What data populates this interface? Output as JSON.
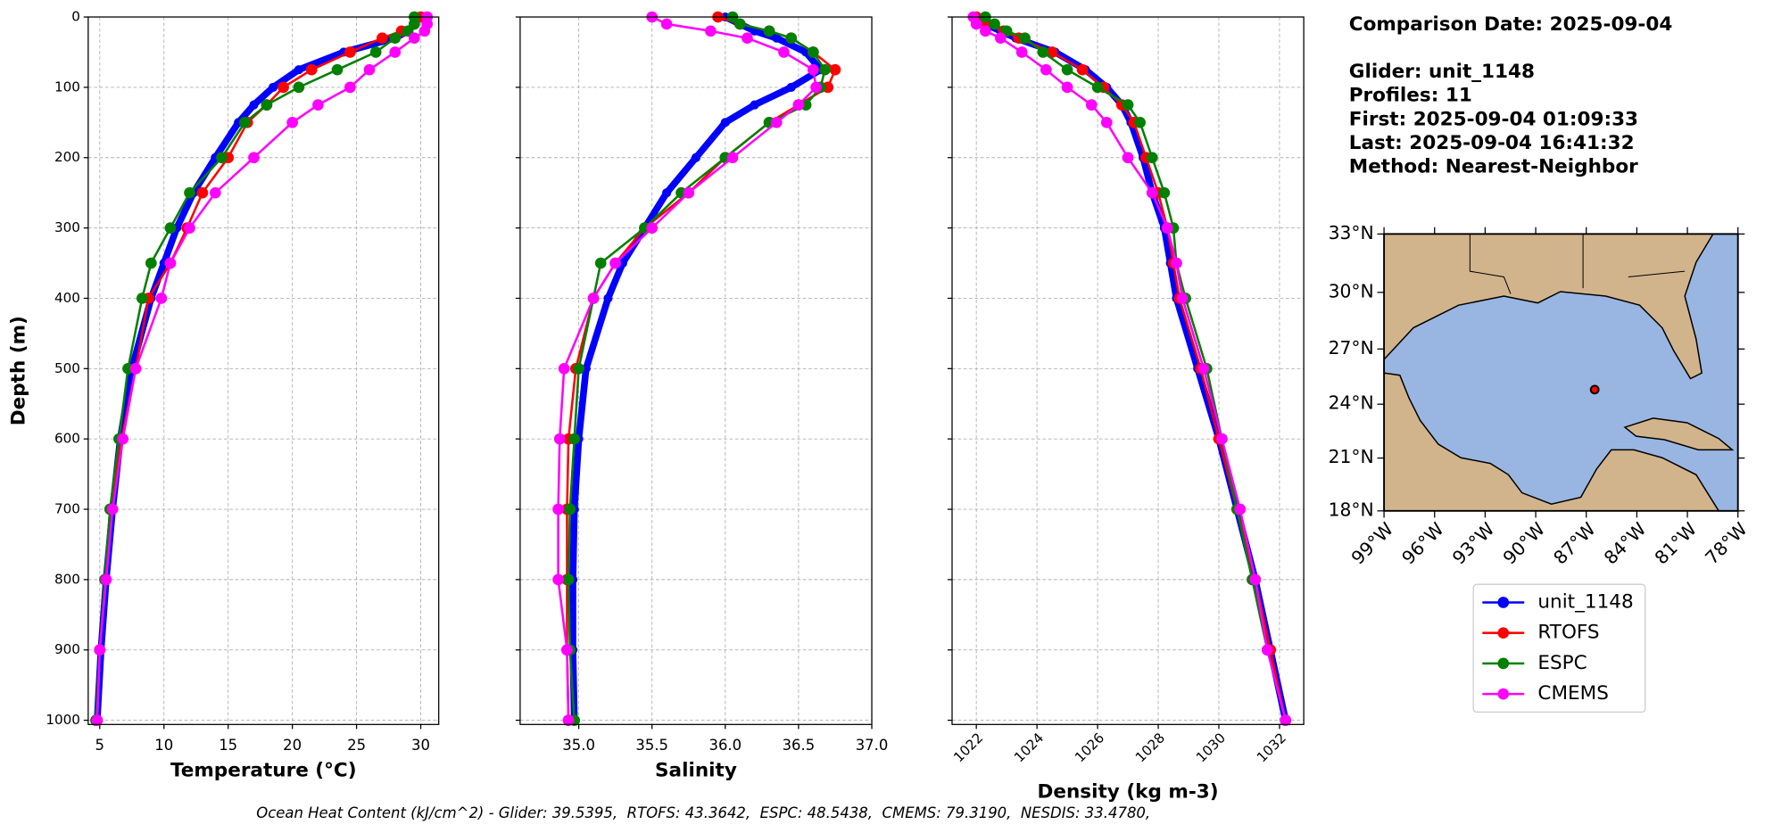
{
  "chart_data": [
    {
      "type": "line",
      "xlabel": "Temperature (°C)",
      "ylabel": "Depth (m)",
      "y": [
        0,
        10,
        20,
        30,
        50,
        75,
        100,
        125,
        150,
        200,
        250,
        300,
        350,
        400,
        500,
        600,
        700,
        800,
        900,
        1000
      ],
      "xlim": [
        4.1,
        31.4
      ],
      "xticks": [
        5,
        10,
        15,
        20,
        25,
        30
      ],
      "ylim": [
        1006,
        0
      ],
      "yticks": [
        0,
        100,
        200,
        300,
        400,
        500,
        600,
        700,
        800,
        900,
        1000
      ],
      "grid": true,
      "series": [
        {
          "name": "unit_1148",
          "color": "#0000ff",
          "values": [
            29.8,
            29.5,
            29.0,
            28.0,
            24.0,
            20.5,
            18.5,
            17.0,
            15.8,
            14.0,
            12.3,
            11.0,
            10.0,
            9.0,
            7.5,
            6.6,
            6.0,
            5.5,
            5.1,
            4.8
          ]
        },
        {
          "name": "RTOFS",
          "color": "#ff0000",
          "values": [
            30.0,
            29.5,
            28.5,
            27.0,
            24.5,
            21.5,
            19.3,
            18.0,
            16.5,
            15.0,
            13.0,
            11.8,
            10.5,
            8.8,
            7.8,
            6.7,
            5.8,
            5.4,
            5.0,
            4.8
          ]
        },
        {
          "name": "ESPC",
          "color": "#008000",
          "values": [
            29.5,
            29.5,
            29.0,
            28.0,
            26.5,
            23.5,
            20.5,
            18.0,
            16.3,
            14.5,
            12.0,
            10.5,
            9.0,
            8.3,
            7.2,
            6.5,
            5.8,
            5.4,
            5.0,
            4.7
          ]
        },
        {
          "name": "CMEMS",
          "color": "#ff00ff",
          "values": [
            30.5,
            30.5,
            30.3,
            29.5,
            28.0,
            26.0,
            24.5,
            22.0,
            20.0,
            17.0,
            14.0,
            12.0,
            10.5,
            9.8,
            7.8,
            6.8,
            6.0,
            5.5,
            5.0,
            4.8
          ]
        }
      ]
    },
    {
      "type": "line",
      "xlabel": "Salinity",
      "y": [
        0,
        10,
        20,
        30,
        50,
        75,
        100,
        125,
        150,
        200,
        250,
        300,
        350,
        400,
        500,
        600,
        700,
        800,
        900,
        1000
      ],
      "xlim": [
        34.6,
        37.0
      ],
      "xticks": [
        {
          "value": 35,
          "label": "35.0"
        },
        35.5,
        {
          "value": 36,
          "label": "36.0"
        },
        36.5,
        {
          "value": 37,
          "label": "37.0"
        }
      ],
      "ylim": [
        1006,
        0
      ],
      "yticks": [
        0,
        100,
        200,
        300,
        400,
        500,
        600,
        700,
        800,
        900,
        1000
      ],
      "grid": true,
      "series": [
        {
          "values": [
            36.0,
            36.1,
            36.2,
            36.35,
            36.55,
            36.65,
            36.45,
            36.2,
            36.0,
            35.8,
            35.6,
            35.45,
            35.3,
            35.2,
            35.05,
            35.0,
            34.97,
            34.96,
            34.96,
            34.97
          ]
        },
        {
          "values": [
            35.95,
            36.1,
            36.3,
            36.45,
            36.6,
            36.75,
            36.7,
            36.5,
            36.3,
            36.0,
            35.75,
            35.45,
            35.25,
            35.1,
            34.98,
            34.93,
            34.92,
            34.92,
            34.92,
            34.93
          ]
        },
        {
          "values": [
            36.05,
            36.1,
            36.3,
            36.45,
            36.6,
            36.68,
            36.65,
            36.55,
            36.3,
            36.0,
            35.7,
            35.45,
            35.15,
            35.1,
            35.0,
            34.97,
            34.94,
            34.93,
            34.94,
            34.97
          ]
        },
        {
          "values": [
            35.5,
            35.6,
            35.9,
            36.15,
            36.4,
            36.6,
            36.62,
            36.5,
            36.35,
            36.05,
            35.75,
            35.5,
            35.25,
            35.1,
            34.9,
            34.87,
            34.86,
            34.86,
            34.92,
            34.93
          ]
        }
      ]
    },
    {
      "type": "line",
      "xlabel": "Density (kg m-3)",
      "y": [
        0,
        10,
        20,
        30,
        50,
        75,
        100,
        125,
        150,
        200,
        250,
        300,
        350,
        400,
        500,
        600,
        700,
        800,
        900,
        1000
      ],
      "xlim": [
        1021.2,
        1032.8
      ],
      "xticks": [
        1022,
        1024,
        1026,
        1028,
        1030,
        1032
      ],
      "ylim": [
        1006,
        0
      ],
      "yticks": [
        0,
        100,
        200,
        300,
        400,
        500,
        600,
        700,
        800,
        900,
        1000
      ],
      "grid": true,
      "series": [
        {
          "values": [
            1022.0,
            1022.3,
            1022.8,
            1023.3,
            1024.6,
            1025.6,
            1026.3,
            1026.8,
            1027.1,
            1027.5,
            1027.8,
            1028.2,
            1028.4,
            1028.6,
            1029.3,
            1030.0,
            1030.6,
            1031.2,
            1031.7,
            1032.2
          ]
        },
        {
          "values": [
            1022.0,
            1022.3,
            1022.9,
            1023.4,
            1024.5,
            1025.5,
            1026.2,
            1026.8,
            1027.2,
            1027.6,
            1028.0,
            1028.3,
            1028.5,
            1028.7,
            1029.4,
            1030.0,
            1030.6,
            1031.2,
            1031.7,
            1032.2
          ]
        },
        {
          "values": [
            1022.3,
            1022.6,
            1023.0,
            1023.6,
            1024.2,
            1025.0,
            1026.0,
            1027.0,
            1027.4,
            1027.8,
            1028.2,
            1028.5,
            1028.6,
            1028.9,
            1029.6,
            1030.1,
            1030.6,
            1031.1,
            1031.6,
            1032.2
          ]
        },
        {
          "values": [
            1021.9,
            1022.0,
            1022.3,
            1022.8,
            1023.5,
            1024.3,
            1025.0,
            1025.8,
            1026.3,
            1027.0,
            1027.8,
            1028.3,
            1028.6,
            1028.8,
            1029.5,
            1030.1,
            1030.7,
            1031.2,
            1031.6,
            1032.2
          ]
        }
      ]
    },
    {
      "type": "map",
      "location": {
        "lon": -86.5,
        "lat": 24.8
      },
      "color": "#ff0000",
      "xlim": [
        -99,
        -78
      ],
      "ylim": [
        18,
        33
      ],
      "xticks": [
        {
          "value": -99,
          "label": "99°W"
        },
        {
          "value": -96,
          "label": "96°W"
        },
        {
          "value": -93,
          "label": "93°W"
        },
        {
          "value": -90,
          "label": "90°W"
        },
        {
          "value": -87,
          "label": "87°W"
        },
        {
          "value": -84,
          "label": "84°W"
        },
        {
          "value": -81,
          "label": "81°W"
        },
        {
          "value": -78,
          "label": "78°W"
        }
      ],
      "yticks": [
        {
          "value": 33,
          "label": "33°N"
        },
        {
          "value": 30,
          "label": "30°N"
        },
        {
          "value": 27,
          "label": "27°N"
        },
        {
          "value": 24,
          "label": "24°N"
        },
        {
          "value": 21,
          "label": "21°N"
        },
        {
          "value": 18,
          "label": "18°N"
        }
      ]
    }
  ],
  "info": {
    "title": "Comparison Date: 2025-09-04",
    "lines": [
      "Glider: unit_1148",
      "Profiles: 11",
      "First: 2025-09-04 01:09:33",
      "Last: 2025-09-04 16:41:32",
      "Method: Nearest-Neighbor"
    ]
  },
  "footer": "Ocean Heat Content (kJ/cm^2) - Glider: 39.5395,  RTOFS: 43.3642,  ESPC: 48.5438,  CMEMS: 79.3190,  NESDIS: 33.4780,"
}
